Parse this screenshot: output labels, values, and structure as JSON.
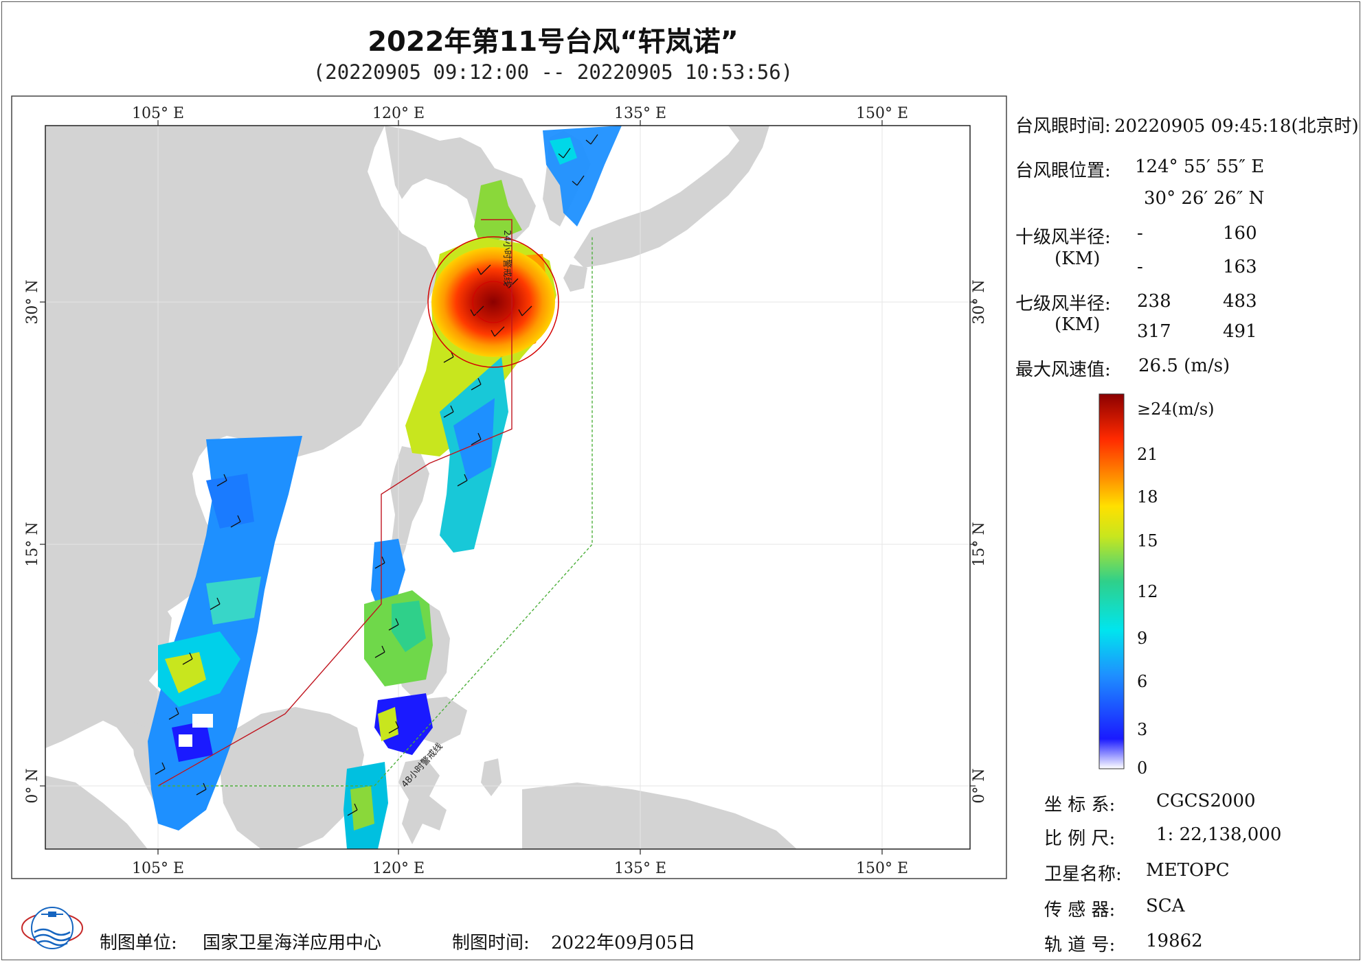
{
  "header": {
    "title": "2022年第11号台风“轩岚诺”",
    "subtitle": "(20220905 09:12:00 -- 20220905 10:53:56)"
  },
  "map": {
    "lon_ticks_top": [
      "105° E",
      "120° E",
      "135° E",
      "150° E"
    ],
    "lon_ticks_bottom": [
      "105° E",
      "120° E",
      "135° E",
      "150° E"
    ],
    "lat_ticks_left": [
      "30° N",
      "15° N",
      "0° N"
    ],
    "lat_ticks_right": [
      "30° N",
      "15° N",
      "0° N"
    ],
    "warning_24h_label": "24小时警戒线",
    "warning_48h_label": "48小时警戒线",
    "colors": {
      "land": "#d3d3d3",
      "sea": "#ffffff",
      "warning_24h": "#c0141e",
      "warning_48h": "#4caf3a",
      "circle": "#d40000"
    },
    "typhoon_eye": {
      "lon": 124.93,
      "lat": 30.44
    }
  },
  "info": {
    "eye_time_label": "台风眼时间:",
    "eye_time_value": "20220905 09:45:18(北京时)",
    "eye_pos_label": "台风眼位置:",
    "eye_lon": "124° 55′ 55″ E",
    "eye_lat": "30° 26′ 26″ N",
    "r10_label": "十级风半径:",
    "r10_unit": "(KM)",
    "r10_values": [
      [
        "-",
        "160"
      ],
      [
        "-",
        "163"
      ]
    ],
    "r7_label": "七级风半径:",
    "r7_unit": "(KM)",
    "r7_values": [
      [
        "238",
        "483"
      ],
      [
        "317",
        "491"
      ]
    ],
    "max_wind_label": "最大风速值:",
    "max_wind_value": "26.5 (m/s)"
  },
  "colorbar": {
    "ticks": [
      "≥24(m/s)",
      "21",
      "18",
      "15",
      "12",
      "9",
      "6",
      "3",
      "0"
    ],
    "stops": [
      "#ffffff",
      "#1a1aff",
      "#1e90ff",
      "#00e5ee",
      "#2fd08a",
      "#c8e61e",
      "#ffe000",
      "#ff8c00",
      "#ff2a00",
      "#8b0000"
    ]
  },
  "metadata": {
    "crs_label": "坐 标 系:",
    "crs_value": "CGCS2000",
    "scale_label": "比 例 尺:",
    "scale_value": "1: 22,138,000",
    "satellite_label": "卫星名称:",
    "satellite_value": "METOPC",
    "sensor_label": "传 感 器:",
    "sensor_value": "SCA",
    "orbit_label": "轨 道 号:",
    "orbit_value": "19862"
  },
  "footer": {
    "producer_label": "制图单位:",
    "producer_value": "国家卫星海洋应用中心",
    "date_label": "制图时间:",
    "date_value": "2022年09月05日"
  }
}
